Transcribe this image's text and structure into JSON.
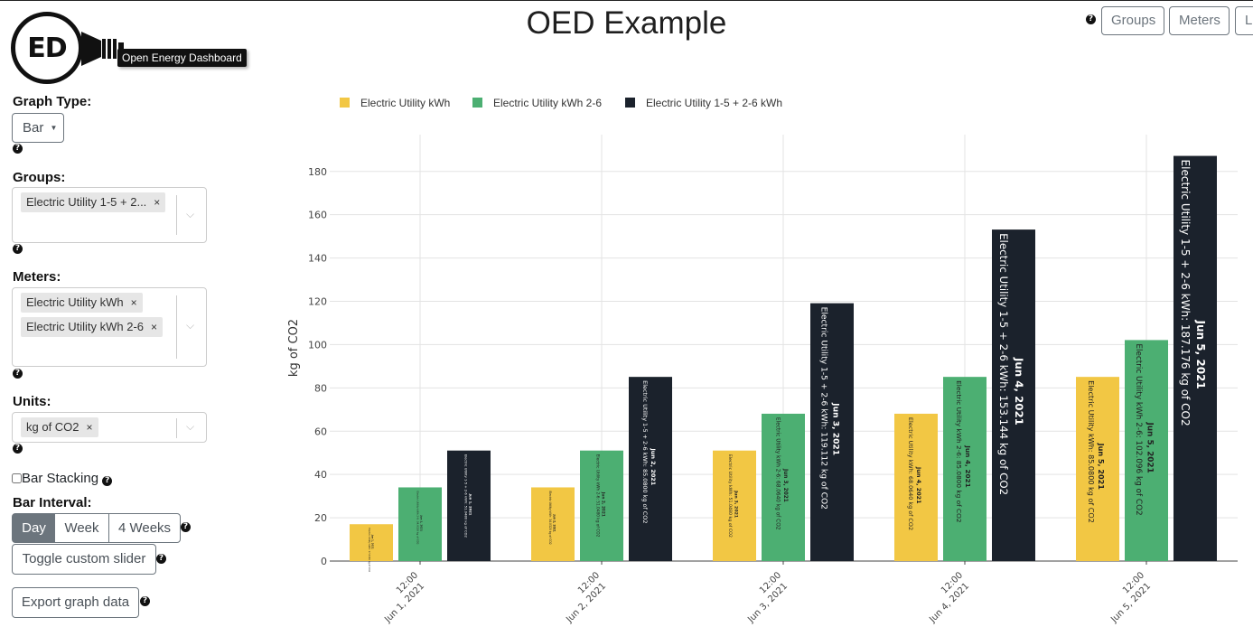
{
  "app": {
    "title": "OED Example",
    "logo_text": "ED",
    "logo_tooltip": "Open Energy Dashboard"
  },
  "nav": {
    "help_icon": "question-circle-icon",
    "groups_label": "Groups",
    "meters_label": "Meters",
    "partial_label": "L"
  },
  "sidebar": {
    "graph_type_label": "Graph Type:",
    "graph_type_value": "Bar",
    "groups_label": "Groups:",
    "groups_selected": [
      "Electric Utility 1-5 + 2..."
    ],
    "meters_label": "Meters:",
    "meters_selected": [
      "Electric Utility kWh",
      "Electric Utility kWh 2-6"
    ],
    "units_label": "Units:",
    "units_selected": [
      "kg of CO2"
    ],
    "bar_stacking_label": "Bar Stacking",
    "bar_stacking_checked": false,
    "bar_interval_label": "Bar Interval:",
    "intervals": [
      "Day",
      "Week",
      "4 Weeks"
    ],
    "active_interval": "Day",
    "toggle_slider_label": "Toggle custom slider",
    "export_label": "Export graph data",
    "remove_glyph": "×"
  },
  "chart_data": {
    "type": "bar",
    "ylabel": "kg of CO2",
    "ylim": [
      0,
      195
    ],
    "yticks": [
      0,
      20,
      40,
      60,
      80,
      100,
      120,
      140,
      160,
      180
    ],
    "grid": true,
    "legend_position": "top-left",
    "categories": [
      {
        "time": "12:00",
        "date": "Jun 1, 2021"
      },
      {
        "time": "12:00",
        "date": "Jun 2, 2021"
      },
      {
        "time": "12:00",
        "date": "Jun 3, 2021"
      },
      {
        "time": "12:00",
        "date": "Jun 4, 2021"
      },
      {
        "time": "12:00",
        "date": "Jun 5, 2021"
      }
    ],
    "series": [
      {
        "name": "Electric Utility kWh",
        "color": "#f2c744",
        "values": [
          17.016,
          34.032,
          51.048,
          68.064,
          85.08
        ],
        "labels": [
          {
            "date": "Jun 1, 2021",
            "text": "Electric Utility kWh: 17.0160 kg of CO2"
          },
          {
            "date": "Jun 2, 2021",
            "text": "Electric Utility kWh: 34.0320 kg of CO2"
          },
          {
            "date": "Jun 3, 2021",
            "text": "Electric Utility kWh: 51.0480 kg of CO2"
          },
          {
            "date": "Jun 4, 2021",
            "text": "Electric Utility kWh: 68.0640 kg of CO2"
          },
          {
            "date": "Jun 5, 2021",
            "text": "Electric Utility kWh: 85.0800 kg of CO2"
          }
        ]
      },
      {
        "name": "Electric Utility kWh 2-6",
        "color": "#4caf72",
        "values": [
          34.032,
          51.048,
          68.064,
          85.08,
          102.096
        ],
        "labels": [
          {
            "date": "Jun 1, 2021",
            "text": "Electric Utility kWh 2-6: 34.0320 kg of CO2"
          },
          {
            "date": "Jun 2, 2021",
            "text": "Electric Utility kWh 2-6: 51.0480 kg of CO2"
          },
          {
            "date": "Jun 3, 2021",
            "text": "Electric Utility kWh 2-6: 68.0640 kg of CO2"
          },
          {
            "date": "Jun 4, 2021",
            "text": "Electric Utility kWh 2-6: 85.0800 kg of CO2"
          },
          {
            "date": "Jun 5, 2021",
            "text": "Electric Utility kWh 2-6: 102.096 kg of CO2"
          }
        ]
      },
      {
        "name": "Electric Utility 1-5 + 2-6 kWh",
        "color": "#1b222c",
        "values": [
          51.048,
          85.08,
          119.112,
          153.144,
          187.176
        ],
        "labels": [
          {
            "date": "Jun 1, 2021",
            "text": "Electric Utility 1-5 + 2-6 kWh: 51.0480 kg of CO2"
          },
          {
            "date": "Jun 2, 2021",
            "text": "Electric Utility 1-5 + 2-6 kWh: 85.0800 kg of CO2"
          },
          {
            "date": "Jun 3, 2021",
            "text": "Electric Utility 1-5 + 2-6 kWh: 119.112 kg of CO2"
          },
          {
            "date": "Jun 4, 2021",
            "text": "Electric Utility 1-5 + 2-6 kWh: 153.144 kg of CO2"
          },
          {
            "date": "Jun 5, 2021",
            "text": "Electric Utility 1-5 + 2-6 kWh: 187.176 kg of CO2"
          }
        ]
      }
    ]
  }
}
